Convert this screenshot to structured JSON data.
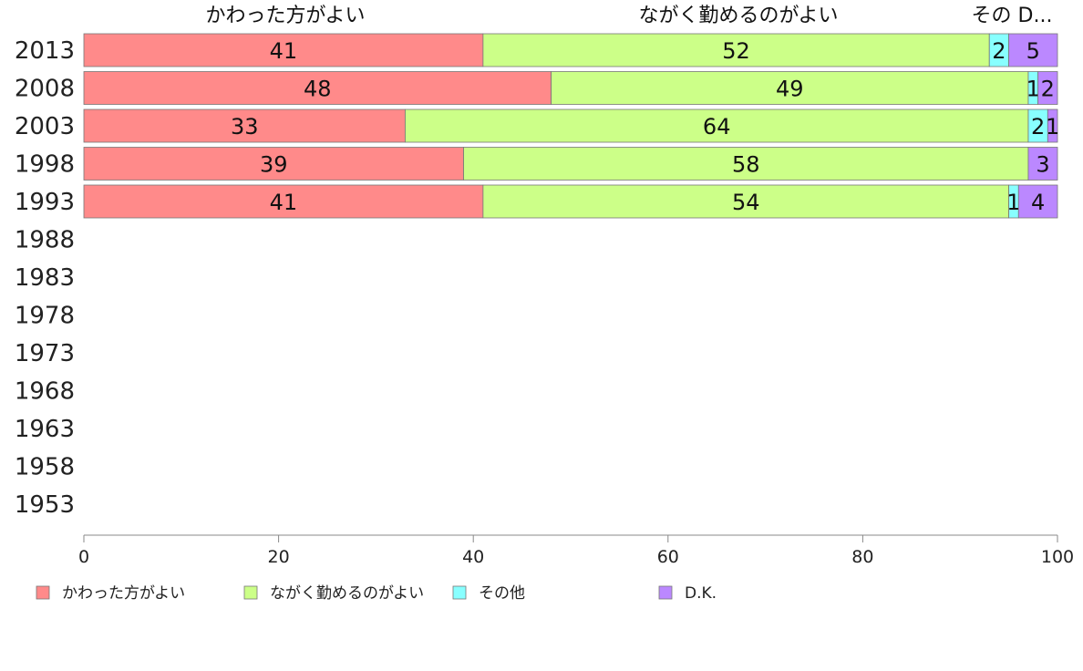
{
  "chart_data": {
    "type": "bar",
    "orientation": "horizontal",
    "stacked": true,
    "categories": [
      "2013",
      "2008",
      "2003",
      "1998",
      "1993",
      "1988",
      "1983",
      "1978",
      "1973",
      "1968",
      "1963",
      "1958",
      "1953"
    ],
    "series": [
      {
        "name": "かわった方がよい",
        "color": "#ff8a8a",
        "values": [
          41,
          48,
          33,
          39,
          41,
          null,
          null,
          null,
          null,
          null,
          null,
          null,
          null
        ]
      },
      {
        "name": "ながく勤めるのがよい",
        "color": "#ccff88",
        "values": [
          52,
          49,
          64,
          58,
          54,
          null,
          null,
          null,
          null,
          null,
          null,
          null,
          null
        ]
      },
      {
        "name": "その他",
        "color": "#88ffff",
        "values": [
          2,
          1,
          2,
          0,
          1,
          null,
          null,
          null,
          null,
          null,
          null,
          null,
          null
        ]
      },
      {
        "name": "D.K.",
        "color": "#bb88ff",
        "values": [
          5,
          2,
          1,
          3,
          4,
          null,
          null,
          null,
          null,
          null,
          null,
          null,
          null
        ]
      }
    ],
    "top_labels": [
      "かわった方がよい",
      "ながく勤めるのがよい",
      "その D..."
    ],
    "x_ticks": [
      "0",
      "20",
      "40",
      "60",
      "80",
      "100"
    ],
    "xlim": [
      0,
      100
    ],
    "legend_position": "bottom",
    "grid": false
  }
}
